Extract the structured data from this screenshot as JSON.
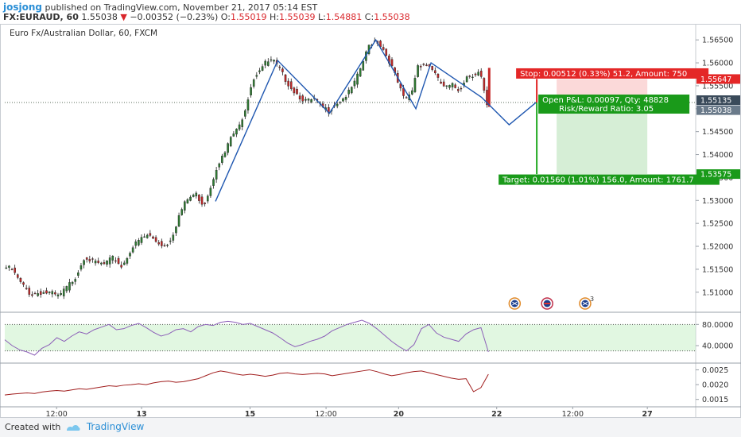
{
  "header": {
    "user": "josjong",
    "published": "published on TradingView.com, November 21, 2017 05:14 EST",
    "symbol": "FX:EURAUD, 60",
    "last": "1.55038",
    "change": "−0.00352 (−0.23%)",
    "ohlc": {
      "o_label": "O:",
      "o": "1.55019",
      "h_label": "H:",
      "h": "1.55039",
      "l_label": "L:",
      "l": "1.54881",
      "c_label": "C:",
      "c": "1.55038"
    }
  },
  "colors": {
    "up": "#2e7d32",
    "down": "#c62828",
    "wave": "#1f57b0",
    "stop": "#e02020",
    "target": "#1fa81f",
    "rsi": "#8c5fb8",
    "osc": "#a01c1c",
    "axis_badge": "#3a4a5a"
  },
  "chart_data": [
    {
      "type": "candlestick",
      "title": "Euro Fx/Australian Dollar, 60, FXCM",
      "ylim": [
        1.5058,
        1.5685
      ],
      "y_ticks": [
        "1.56500",
        "1.56000",
        "1.55500",
        "1.55000",
        "1.54500",
        "1.54000",
        "1.53500",
        "1.53000",
        "1.52500",
        "1.52000",
        "1.51500",
        "1.51000"
      ],
      "x_ticks": [
        "12:00",
        "13",
        "15",
        "12:00",
        "20",
        "22",
        "12:00",
        "27"
      ],
      "x_tick_pos": [
        0.075,
        0.198,
        0.355,
        0.465,
        0.57,
        0.712,
        0.822,
        0.93
      ],
      "price_path": [
        [
          0.0,
          1.5155
        ],
        [
          0.012,
          1.515
        ],
        [
          0.025,
          1.512
        ],
        [
          0.04,
          1.5095
        ],
        [
          0.055,
          1.51
        ],
        [
          0.068,
          1.5098
        ],
        [
          0.08,
          1.509
        ],
        [
          0.092,
          1.511
        ],
        [
          0.105,
          1.5135
        ],
        [
          0.118,
          1.518
        ],
        [
          0.13,
          1.5165
        ],
        [
          0.145,
          1.516
        ],
        [
          0.16,
          1.5175
        ],
        [
          0.172,
          1.5155
        ],
        [
          0.185,
          1.5195
        ],
        [
          0.198,
          1.5215
        ],
        [
          0.21,
          1.5225
        ],
        [
          0.222,
          1.521
        ],
        [
          0.235,
          1.52
        ],
        [
          0.245,
          1.5225
        ],
        [
          0.255,
          1.527
        ],
        [
          0.265,
          1.53
        ],
        [
          0.278,
          1.5315
        ],
        [
          0.29,
          1.529
        ],
        [
          0.3,
          1.533
        ],
        [
          0.31,
          1.538
        ],
        [
          0.32,
          1.54
        ],
        [
          0.33,
          1.544
        ],
        [
          0.34,
          1.5455
        ],
        [
          0.35,
          1.55
        ],
        [
          0.36,
          1.556
        ],
        [
          0.37,
          1.5585
        ],
        [
          0.38,
          1.56
        ],
        [
          0.39,
          1.5605
        ],
        [
          0.4,
          1.5585
        ],
        [
          0.41,
          1.556
        ],
        [
          0.42,
          1.554
        ],
        [
          0.43,
          1.5525
        ],
        [
          0.44,
          1.5515
        ],
        [
          0.45,
          1.552
        ],
        [
          0.46,
          1.5505
        ],
        [
          0.47,
          1.5495
        ],
        [
          0.48,
          1.551
        ],
        [
          0.49,
          1.552
        ],
        [
          0.5,
          1.5535
        ],
        [
          0.51,
          1.556
        ],
        [
          0.52,
          1.56
        ],
        [
          0.53,
          1.564
        ],
        [
          0.54,
          1.565
        ],
        [
          0.55,
          1.563
        ],
        [
          0.56,
          1.56
        ],
        [
          0.57,
          1.556
        ],
        [
          0.58,
          1.552
        ],
        [
          0.59,
          1.553
        ],
        [
          0.6,
          1.5595
        ],
        [
          0.61,
          1.5598
        ],
        [
          0.62,
          1.559
        ],
        [
          0.63,
          1.556
        ],
        [
          0.64,
          1.5545
        ],
        [
          0.65,
          1.555
        ],
        [
          0.66,
          1.554
        ],
        [
          0.67,
          1.557
        ],
        [
          0.68,
          1.5575
        ],
        [
          0.69,
          1.558
        ],
        [
          0.7,
          1.5504
        ]
      ],
      "wave": [
        [
          0.305,
          1.5298
        ],
        [
          0.395,
          1.5605
        ],
        [
          0.47,
          1.549
        ],
        [
          0.537,
          1.565
        ],
        [
          0.595,
          1.55
        ],
        [
          0.617,
          1.56
        ],
        [
          0.69,
          1.5525
        ],
        [
          0.73,
          1.5465
        ],
        [
          0.77,
          1.5515
        ]
      ],
      "position": {
        "entry": 1.55135,
        "stop": 1.55647,
        "target": 1.53575,
        "x_start": 0.77,
        "x_end": 0.955,
        "stop_label": "Stop: 0.00512 (0.33%) 51.2, Amount: 750",
        "pnl_label": "Open P&L: 0.00097, Qty: 48828",
        "rr_label": "Risk/Reward Ratio: 3.05",
        "target_label": "Target: 0.01560 (1.01%) 156.0, Amount: 1761.7"
      },
      "price_badges": [
        {
          "value": 1.55647,
          "text": "1.55647",
          "kind": "stop"
        },
        {
          "value": 1.55135,
          "text": "1.55135",
          "kind": "entry"
        },
        {
          "value": 1.55038,
          "text": "1.55038",
          "kind": "last"
        },
        {
          "value": 1.53575,
          "text": "1.53575",
          "kind": "target"
        }
      ],
      "events": [
        {
          "x": 0.738,
          "name": "australia-flag-icon"
        },
        {
          "x": 0.785,
          "name": "usa-flag-icon"
        },
        {
          "x": 0.84,
          "name": "australia-flag-icon",
          "count": "3"
        }
      ]
    },
    {
      "type": "line",
      "name": "rsi",
      "ylim": [
        10,
        100
      ],
      "levels": [
        80,
        30
      ],
      "y_ticks": [
        "80.0000",
        "40.0000"
      ],
      "y_tick_values": [
        80,
        40
      ],
      "values": [
        51,
        40,
        32,
        28,
        22,
        35,
        42,
        55,
        48,
        58,
        66,
        62,
        70,
        75,
        80,
        70,
        72,
        78,
        82,
        74,
        65,
        58,
        62,
        70,
        72,
        66,
        76,
        80,
        78,
        84,
        86,
        84,
        80,
        82,
        76,
        70,
        64,
        55,
        45,
        38,
        42,
        48,
        52,
        58,
        68,
        74,
        80,
        84,
        88,
        82,
        72,
        60,
        48,
        38,
        30,
        42,
        72,
        80,
        64,
        56,
        52,
        48,
        62,
        70,
        74,
        28
      ]
    },
    {
      "type": "line",
      "name": "oscillator",
      "ylim": [
        0.00125,
        0.0027
      ],
      "y_ticks": [
        "0.0025",
        "0.0020",
        "0.0015"
      ],
      "y_tick_values": [
        0.0025,
        0.002,
        0.0015
      ],
      "values": [
        0.00165,
        0.00168,
        0.0017,
        0.00172,
        0.0017,
        0.00175,
        0.00178,
        0.0018,
        0.00178,
        0.00182,
        0.00186,
        0.00184,
        0.00188,
        0.00192,
        0.00196,
        0.00194,
        0.00198,
        0.002,
        0.00203,
        0.002,
        0.00206,
        0.0021,
        0.00212,
        0.00208,
        0.0021,
        0.00215,
        0.0022,
        0.0023,
        0.0024,
        0.00246,
        0.00242,
        0.00236,
        0.00232,
        0.00235,
        0.00232,
        0.00228,
        0.00232,
        0.00238,
        0.0024,
        0.00236,
        0.00234,
        0.00236,
        0.00238,
        0.00236,
        0.0023,
        0.00234,
        0.00238,
        0.00242,
        0.00246,
        0.0025,
        0.00244,
        0.00236,
        0.0023,
        0.00234,
        0.0024,
        0.00244,
        0.00246,
        0.0024,
        0.00234,
        0.00228,
        0.00222,
        0.00218,
        0.0022,
        0.00176,
        0.0019,
        0.00235
      ]
    }
  ],
  "footer": {
    "created": "Created with",
    "brand": "TradingView"
  }
}
